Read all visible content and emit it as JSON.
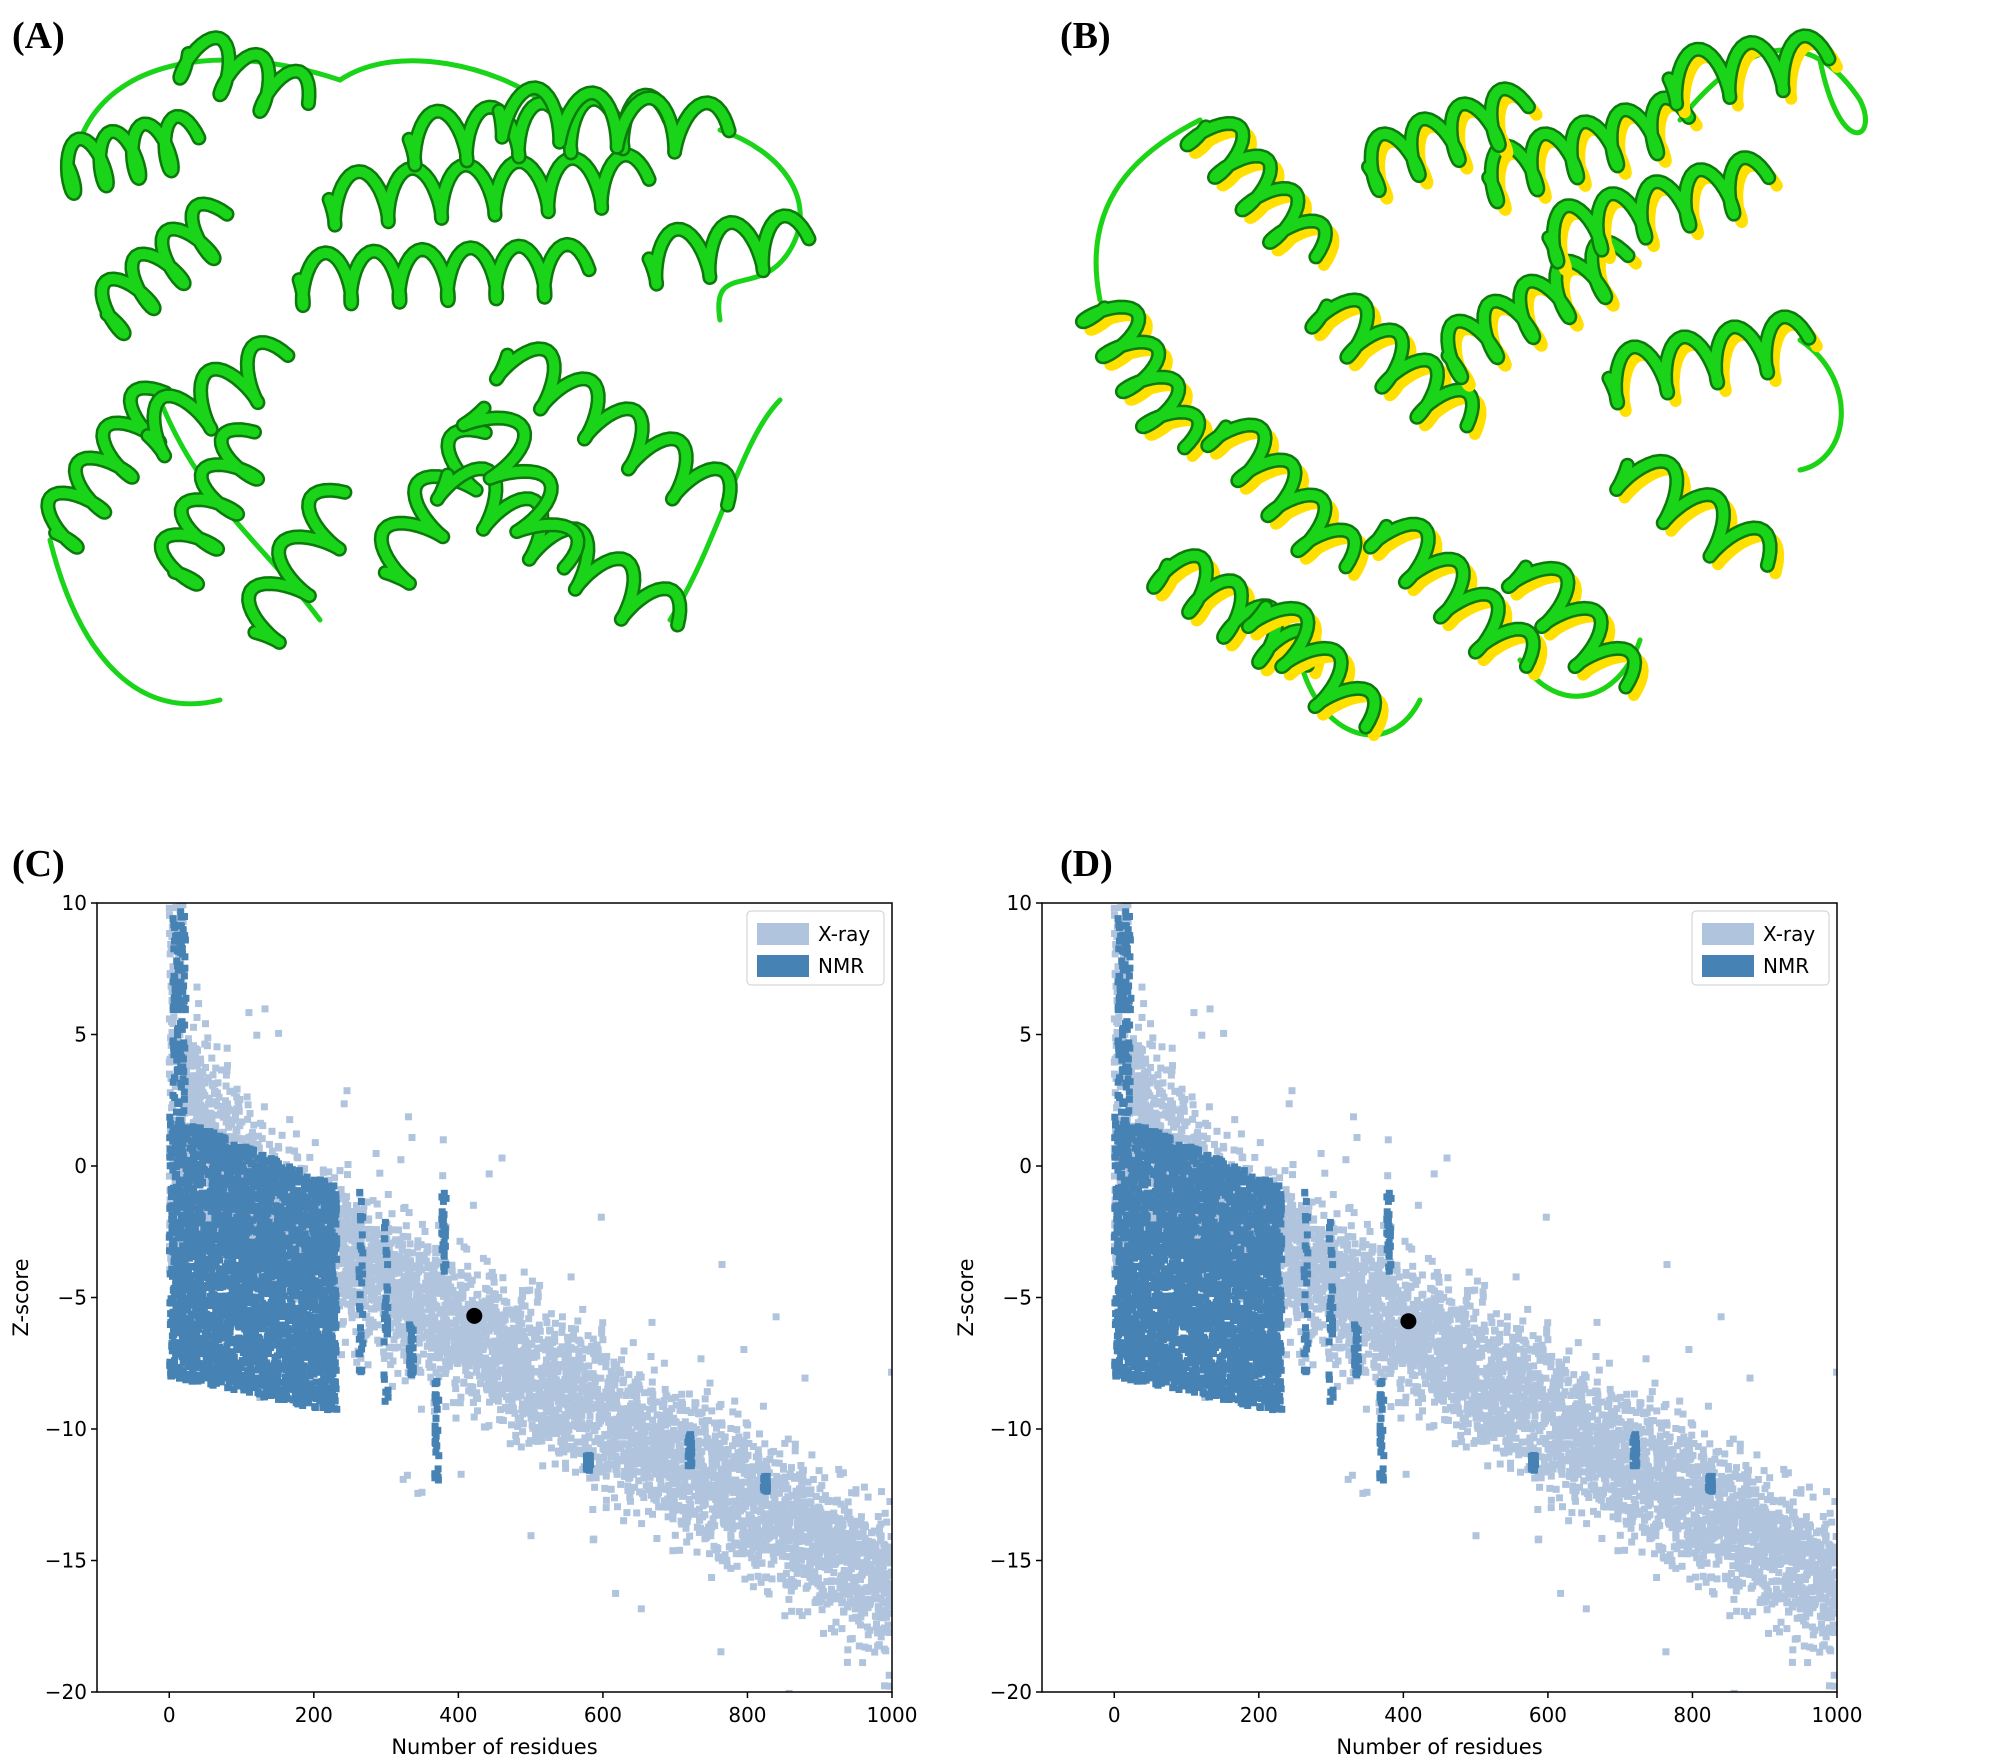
{
  "figure": {
    "panels": [
      {
        "label": "(A)"
      },
      {
        "label": "(B)"
      },
      {
        "label": "(C)"
      },
      {
        "label": "(D)"
      }
    ],
    "colors": {
      "model_ribbon": "#19d419",
      "reference_ribbon": "#ffe000",
      "xray": "#b0c4de",
      "nmr": "#4682b4",
      "query_point": "#000000"
    }
  },
  "chart_data": [
    {
      "type": "scatter",
      "panel": "(C)",
      "title": "",
      "xlabel": "Number of residues",
      "ylabel": "Z-score",
      "xlim": [
        -100,
        1000
      ],
      "ylim": [
        -20,
        10
      ],
      "xticks": [
        "0",
        "200",
        "400",
        "600",
        "800",
        "1000"
      ],
      "yticks": [
        "10",
        "5",
        "0",
        "−10",
        "−15",
        "−20"
      ],
      "yticks_all": [
        "10",
        "5",
        "0",
        "−5",
        "−10",
        "−15",
        "−20"
      ],
      "legend": {
        "position": "top-right",
        "entries": [
          "X-ray",
          "NMR"
        ]
      },
      "grid": false,
      "series": [
        {
          "name": "X-ray",
          "color": "#b0c4de",
          "density": "band from (10, 10) down to (1000, -13), width ~ 7 Z-units"
        },
        {
          "name": "NMR",
          "color": "#4682b4",
          "density": "dense cluster 0-230 residues, Z -9 to 2"
        }
      ],
      "query_point": {
        "x": 422,
        "y": -5.7
      }
    },
    {
      "type": "scatter",
      "panel": "(D)",
      "title": "",
      "xlabel": "Number of residues",
      "ylabel": "Z-score",
      "xlim": [
        -100,
        1000
      ],
      "ylim": [
        -20,
        10
      ],
      "xticks": [
        "0",
        "200",
        "400",
        "600",
        "800",
        "1000"
      ],
      "yticks_all": [
        "10",
        "5",
        "0",
        "−5",
        "−10",
        "−15",
        "−20"
      ],
      "legend": {
        "position": "top-right",
        "entries": [
          "X-ray",
          "NMR"
        ]
      },
      "grid": false,
      "series": [
        {
          "name": "X-ray",
          "color": "#b0c4de"
        },
        {
          "name": "NMR",
          "color": "#4682b4"
        }
      ],
      "query_point": {
        "x": 407,
        "y": -5.9
      }
    }
  ]
}
